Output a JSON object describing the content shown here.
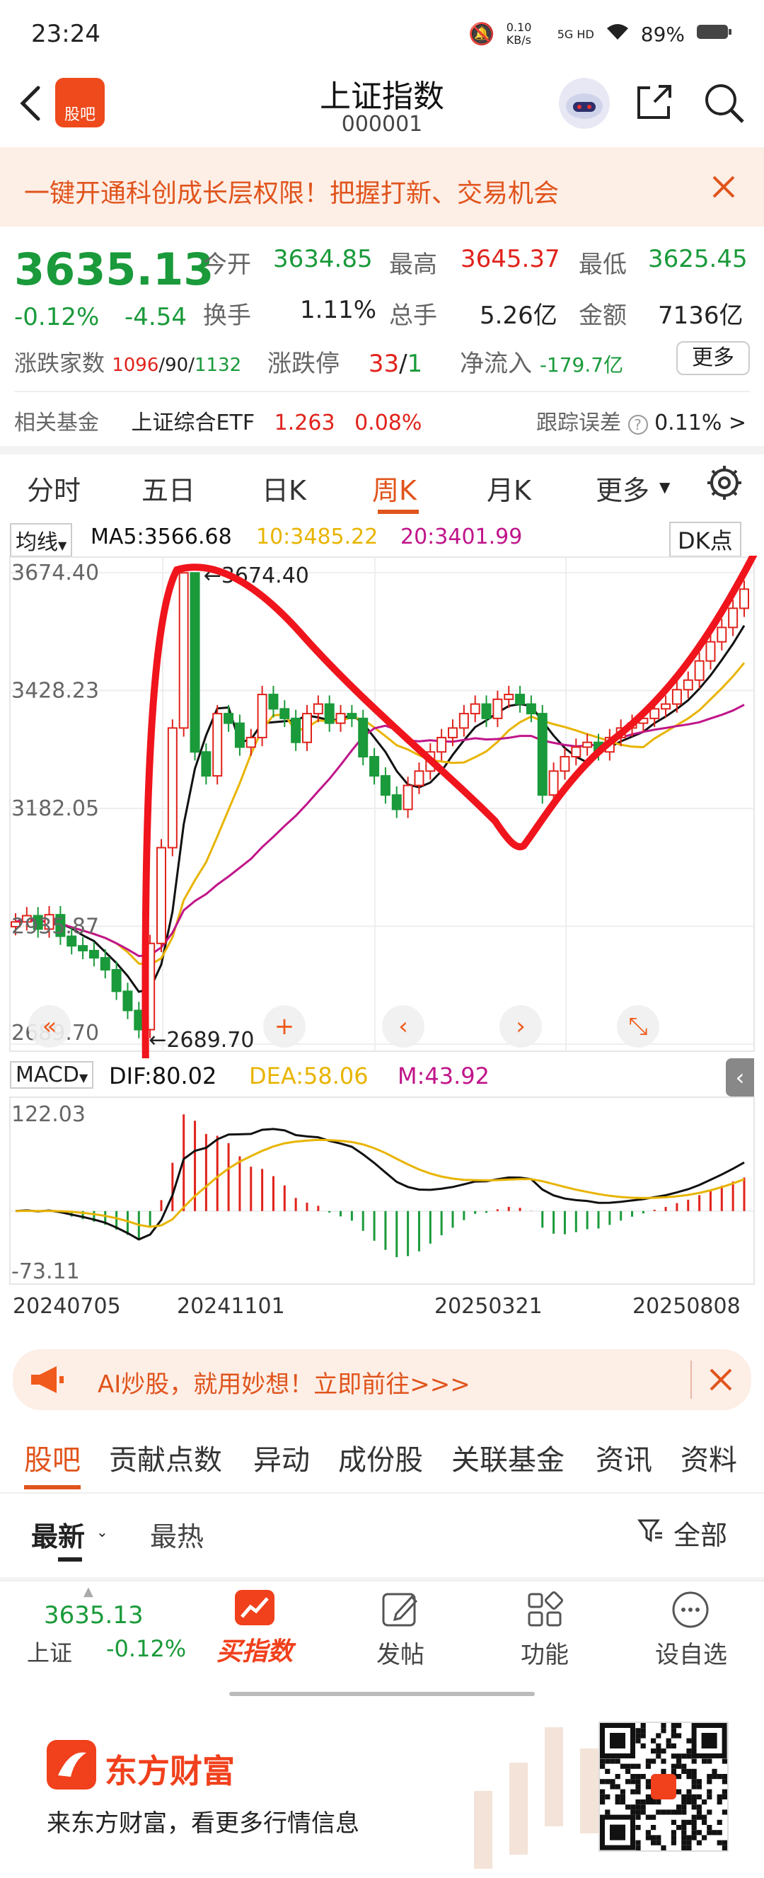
{
  "status": {
    "time": "23:24",
    "net_speed": "0.10 KB/s",
    "net_type": "5G HD",
    "battery": "89%"
  },
  "header": {
    "title": "上证指数",
    "code": "000001",
    "logo_text": "股吧"
  },
  "banner": {
    "text": "一键开通科创成长层权限！把握打新、交易机会"
  },
  "quote": {
    "price": "3635.13",
    "change_pct": "-0.12%",
    "change": "-4.54",
    "open_label": "今开",
    "open": "3634.85",
    "high_label": "最高",
    "high": "3645.37",
    "low_label": "最低",
    "low": "3625.45",
    "turnover_label": "换手",
    "turnover": "1.11%",
    "volume_label": "总手",
    "volume": "5.26亿",
    "amount_label": "金额",
    "amount": "7136亿",
    "updown_label": "涨跌家数",
    "up": "1096",
    "flat": "90",
    "down": "1132",
    "limit_label": "涨跌停",
    "limit_up": "33",
    "limit_down": "1",
    "inflow_label": "净流入",
    "inflow": "-179.7亿",
    "more_label": "更多",
    "fund_label": "相关基金",
    "fund_name": "上证综合ETF",
    "fund_price": "1.263",
    "fund_pct": "0.08%",
    "tracking_label": "跟踪误差",
    "tracking": "0.11% >"
  },
  "chart_tabs": [
    "分时",
    "五日",
    "日K",
    "周K",
    "月K",
    "更多"
  ],
  "active_chart_tab": "周K",
  "ma_legend": {
    "selector": "均线",
    "ma5": "MA5:3566.68",
    "ma10": "10:3485.22",
    "ma20": "20:3401.99",
    "dk": "DK点"
  },
  "macd_legend": {
    "selector": "MACD",
    "dif": "DIF:80.02",
    "dea": "DEA:58.06",
    "m": "M:43.92"
  },
  "chart_data": [
    {
      "type": "candlestick",
      "y_ticks": [
        "3674.40",
        "3428.23",
        "3182.05",
        "2935.87",
        "2689.70"
      ],
      "ylim": [
        2689.7,
        3674.4
      ],
      "max_label": "3674.40",
      "min_label": "2689.70",
      "x_ticks": [
        "20240705",
        "20241101",
        "20250321",
        "20250808"
      ],
      "colors": {
        "up": "#e0231c",
        "down": "#1a9a3a",
        "ma5": "#111111",
        "ma10": "#e8b400",
        "ma20": "#c0158a"
      }
    },
    {
      "type": "bar",
      "name": "MACD",
      "y_ticks": [
        "122.03",
        "-73.11"
      ],
      "ylim": [
        -73.11,
        122.03
      ]
    }
  ],
  "ad": {
    "text": "AI炒股，就用妙想！立即前往>>>"
  },
  "subtabs": [
    "股吧",
    "贡献点数",
    "异动",
    "成份股",
    "关联基金",
    "资讯",
    "资料"
  ],
  "feed_tabs": {
    "latest": "最新",
    "hot": "最热",
    "filter": "全部"
  },
  "bottom_nav": {
    "index_price": "3635.13",
    "index_name": "上证",
    "index_pct": "-0.12%",
    "buy_label": "买指数",
    "post_label": "发帖",
    "function_label": "功能",
    "watch_label": "设自选"
  },
  "footer": {
    "brand": "东方财富",
    "slogan": "来东方财富，看更多行情信息"
  }
}
